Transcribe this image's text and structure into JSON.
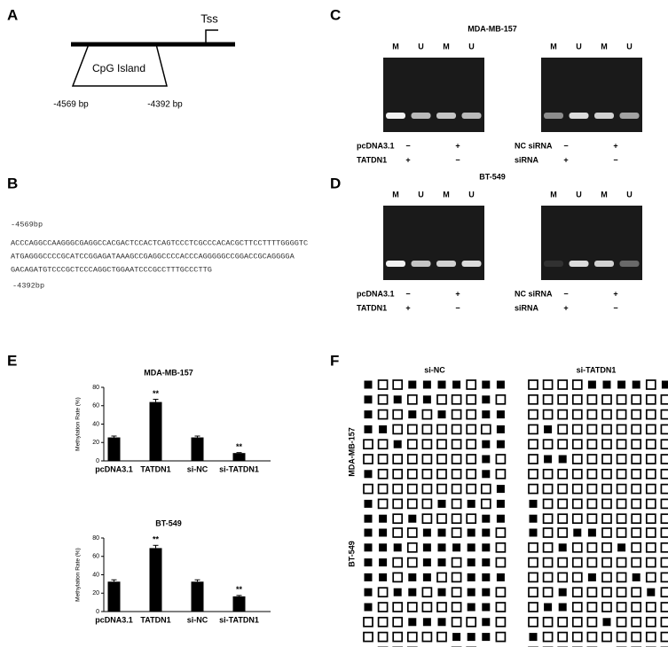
{
  "panel_a": {
    "label": "A",
    "tss": "Tss",
    "island": "CpG Island",
    "start": "-4569 bp",
    "end": "-4392 bp"
  },
  "panel_b": {
    "label": "B",
    "start": "-4569bp",
    "lines": [
      "ACCCAGGCCAAGGGCGAGGCCACGACTCCACTCAGTCCCTCGCCCACACGCTTCCTTTTGGGGTC",
      "ATGAGGGCCCCGCATCCGGAGATAAAGCCGAGGCCCCACCCAGGGGGCCGGACCGCAGGGGA",
      "GACAGATGTCCCGCTCCCAGGCTGGAATCCCGCCTTTGCCCTTG"
    ],
    "end": "-4392bp"
  },
  "panel_c": {
    "label": "C",
    "title": "MDA-MB-157",
    "gels": [
      {
        "lanes": [
          "M",
          "U",
          "M",
          "U"
        ],
        "rows": [
          {
            "label": "pcDNA3.1",
            "signs": [
              "−",
              "+"
            ]
          },
          {
            "label": "TATDN1",
            "signs": [
              "+",
              "−"
            ]
          }
        ]
      },
      {
        "lanes": [
          "M",
          "U",
          "M",
          "U"
        ],
        "rows": [
          {
            "label": "NC siRNA",
            "signs": [
              "−",
              "+"
            ]
          },
          {
            "label": "siRNA",
            "signs": [
              "+",
              "−"
            ]
          }
        ]
      }
    ]
  },
  "panel_d": {
    "label": "D",
    "title": "BT-549",
    "gels": [
      {
        "lanes": [
          "M",
          "U",
          "M",
          "U"
        ],
        "rows": [
          {
            "label": "pcDNA3.1",
            "signs": [
              "−",
              "+"
            ]
          },
          {
            "label": "TATDN1",
            "signs": [
              "+",
              "−"
            ]
          }
        ]
      },
      {
        "lanes": [
          "M",
          "U",
          "M",
          "U"
        ],
        "rows": [
          {
            "label": "NC siRNA",
            "signs": [
              "−",
              "+"
            ]
          },
          {
            "label": "siRNA",
            "signs": [
              "+",
              "−"
            ]
          }
        ]
      }
    ]
  },
  "panel_e": {
    "label": "E"
  },
  "chart_data": [
    {
      "type": "bar",
      "title": "MDA-MB-157",
      "y_label": "Methylation Rate (%)",
      "categories": [
        "pcDNA3.1",
        "TATDN1",
        "si-NC",
        "si-TATDN1"
      ],
      "values": [
        25.5,
        64,
        25.5,
        8.5
      ],
      "errors": [
        1.5,
        3,
        1.5,
        0.5
      ],
      "significance": [
        null,
        "**",
        null,
        "**"
      ],
      "color": "#000000",
      "ylim": [
        0,
        80
      ],
      "yticks": [
        0,
        20,
        40,
        60,
        80
      ]
    },
    {
      "type": "bar",
      "title": "BT-549",
      "y_label": "Methylation Rate (%)",
      "categories": [
        "pcDNA3.1",
        "TATDN1",
        "si-NC",
        "si-TATDN1"
      ],
      "values": [
        32.5,
        69,
        32.5,
        16.5
      ],
      "errors": [
        2,
        3,
        2,
        1
      ],
      "significance": [
        null,
        "**",
        null,
        "**"
      ],
      "color": "#000000",
      "ylim": [
        0,
        80
      ],
      "yticks": [
        0,
        20,
        40,
        60,
        80
      ]
    }
  ],
  "panel_f": {
    "label": "F",
    "columns": [
      "si-NC",
      "si-TATDN1"
    ],
    "rows": [
      "MDA-MB-157",
      "BT-549"
    ],
    "grids": [
      {
        "rows": [
          [
            1,
            0,
            0,
            1,
            1,
            1,
            1,
            0,
            1,
            1
          ],
          [
            1,
            0,
            1,
            0,
            1,
            0,
            0,
            0,
            1,
            0
          ],
          [
            1,
            0,
            0,
            1,
            0,
            1,
            0,
            0,
            1,
            1
          ],
          [
            1,
            1,
            0,
            0,
            0,
            0,
            0,
            0,
            0,
            1
          ],
          [
            0,
            0,
            1,
            0,
            0,
            0,
            0,
            0,
            1,
            1
          ],
          [
            0,
            0,
            0,
            0,
            0,
            0,
            0,
            0,
            1,
            0
          ],
          [
            1,
            0,
            0,
            0,
            0,
            0,
            0,
            0,
            1,
            0
          ],
          [
            0,
            0,
            0,
            0,
            0,
            0,
            0,
            0,
            0,
            1
          ],
          [
            1,
            0,
            0,
            0,
            0,
            1,
            0,
            1,
            0,
            1
          ],
          [
            1,
            1,
            0,
            1,
            0,
            0,
            0,
            0,
            1,
            1
          ]
        ]
      },
      {
        "rows": [
          [
            0,
            0,
            0,
            0,
            1,
            1,
            1,
            1,
            0,
            1
          ],
          [
            0,
            0,
            0,
            0,
            0,
            0,
            0,
            0,
            0,
            0
          ],
          [
            0,
            0,
            0,
            0,
            0,
            0,
            0,
            0,
            0,
            0
          ],
          [
            0,
            1,
            0,
            0,
            0,
            0,
            0,
            0,
            0,
            0
          ],
          [
            0,
            0,
            0,
            0,
            0,
            0,
            0,
            0,
            0,
            0
          ],
          [
            0,
            1,
            1,
            0,
            0,
            0,
            0,
            0,
            0,
            0
          ],
          [
            0,
            0,
            0,
            0,
            0,
            0,
            0,
            0,
            0,
            0
          ],
          [
            0,
            0,
            0,
            0,
            0,
            0,
            0,
            0,
            0,
            0
          ],
          [
            1,
            0,
            0,
            0,
            0,
            0,
            0,
            0,
            0,
            0
          ],
          [
            1,
            0,
            0,
            0,
            0,
            0,
            0,
            0,
            0,
            0
          ]
        ]
      },
      {
        "rows": [
          [
            1,
            1,
            0,
            0,
            1,
            1,
            0,
            1,
            1,
            0
          ],
          [
            1,
            1,
            1,
            0,
            1,
            1,
            1,
            1,
            1,
            0
          ],
          [
            1,
            1,
            0,
            0,
            1,
            1,
            0,
            1,
            1,
            0
          ],
          [
            1,
            1,
            0,
            1,
            1,
            0,
            0,
            1,
            1,
            1
          ],
          [
            1,
            0,
            1,
            1,
            0,
            1,
            0,
            1,
            1,
            0
          ],
          [
            1,
            0,
            0,
            0,
            0,
            0,
            0,
            1,
            1,
            0
          ],
          [
            0,
            0,
            0,
            1,
            1,
            1,
            0,
            0,
            1,
            0
          ],
          [
            0,
            0,
            0,
            0,
            0,
            0,
            1,
            1,
            1,
            0
          ],
          [
            1,
            0,
            0,
            0,
            1,
            1,
            0,
            0,
            1,
            1
          ],
          [
            1,
            0,
            1,
            0,
            1,
            0,
            0,
            1,
            1,
            0
          ]
        ]
      },
      {
        "rows": [
          [
            1,
            0,
            0,
            1,
            1,
            0,
            0,
            0,
            0,
            0
          ],
          [
            0,
            0,
            1,
            0,
            0,
            0,
            1,
            0,
            0,
            0
          ],
          [
            0,
            0,
            0,
            0,
            0,
            0,
            0,
            0,
            0,
            0
          ],
          [
            0,
            0,
            0,
            0,
            1,
            0,
            0,
            1,
            0,
            0
          ],
          [
            0,
            0,
            1,
            0,
            0,
            0,
            0,
            0,
            1,
            0
          ],
          [
            0,
            1,
            1,
            0,
            0,
            0,
            0,
            0,
            0,
            0
          ],
          [
            0,
            0,
            0,
            0,
            0,
            1,
            0,
            0,
            0,
            0
          ],
          [
            1,
            0,
            0,
            0,
            0,
            0,
            0,
            0,
            0,
            0
          ],
          [
            0,
            0,
            0,
            0,
            0,
            1,
            0,
            0,
            0,
            0
          ],
          [
            1,
            0,
            0,
            0,
            0,
            0,
            0,
            0,
            0,
            0
          ]
        ]
      }
    ]
  }
}
